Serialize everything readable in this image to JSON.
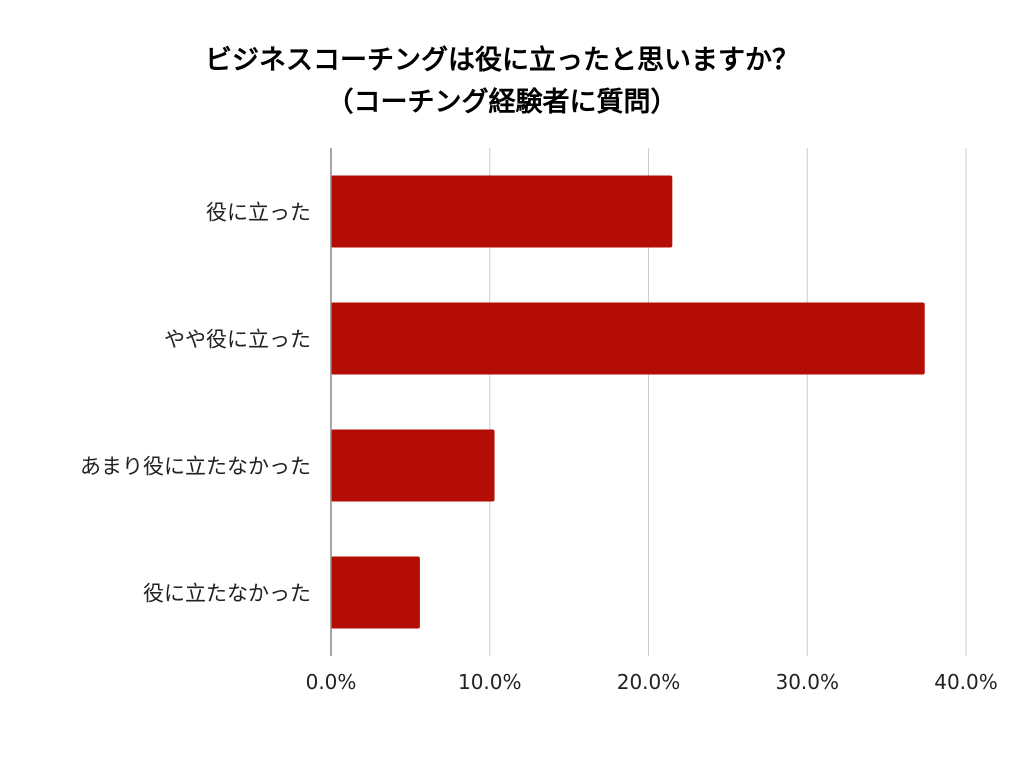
{
  "chart_data": {
    "type": "bar",
    "orientation": "horizontal",
    "title_lines": [
      "ビジネスコーチングは役に立ったと思いますか？",
      "（コーチング経験者に質問）"
    ],
    "categories": [
      "役に立った",
      "やや役に立った",
      "あまり役に立たなかった",
      "役に立たなかった"
    ],
    "values": [
      21.5,
      37.4,
      10.3,
      5.6
    ],
    "xlim": [
      0,
      40
    ],
    "x_ticks": [
      0,
      10,
      20,
      30,
      40
    ],
    "x_tick_labels": [
      "0.0%",
      "10.0%",
      "20.0%",
      "30.0%",
      "40.0%"
    ],
    "xlabel": "",
    "ylabel": "",
    "grid": "vertical",
    "legend": "none",
    "bar_color": "#b30d05",
    "grid_color": "#cccccc",
    "axis_color": "#888888"
  }
}
